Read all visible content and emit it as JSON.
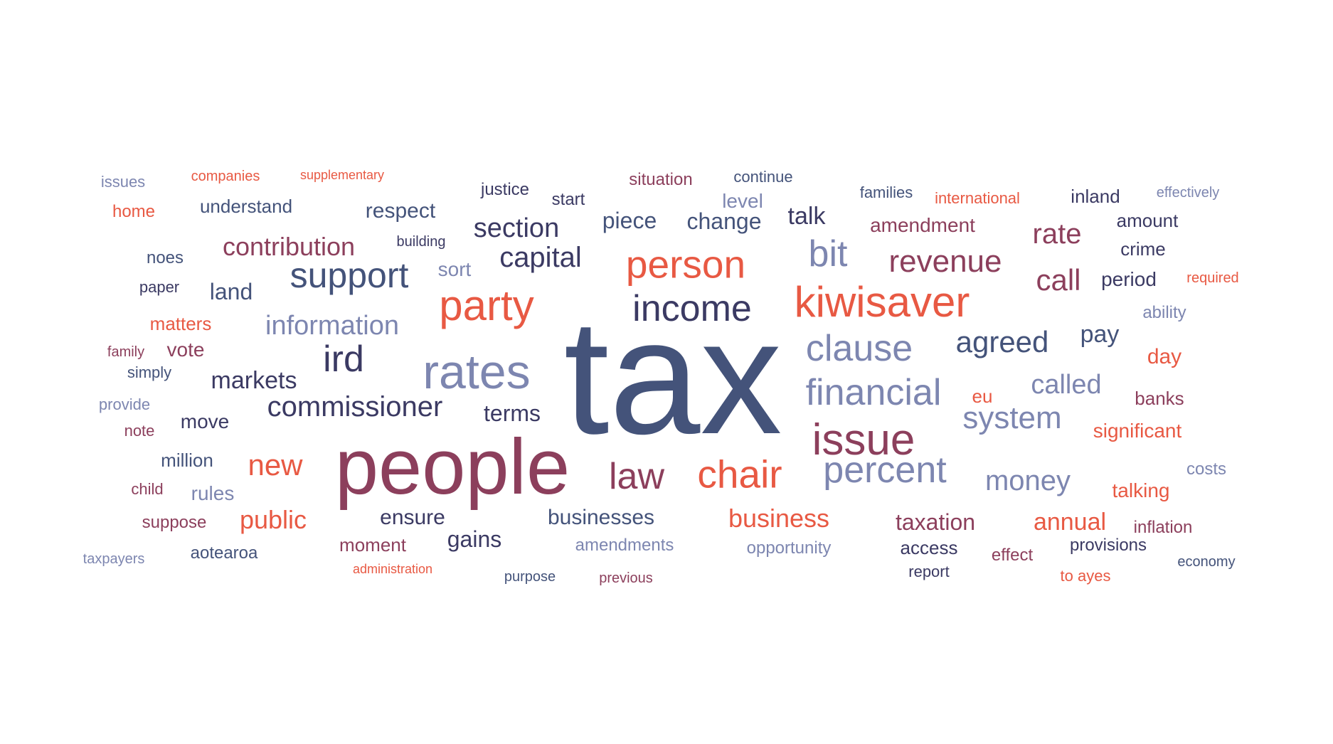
{
  "palette": {
    "navy": "#44537a",
    "indigo": "#3b3a63",
    "slate": "#7d86b0",
    "plum": "#8c3f5c",
    "coral": "#e85943"
  },
  "words": [
    {
      "text": "tax",
      "color": "navy"
    },
    {
      "text": "people",
      "color": "plum"
    },
    {
      "text": "rates",
      "color": "slate"
    },
    {
      "text": "kiwisaver",
      "color": "coral"
    },
    {
      "text": "party",
      "color": "coral"
    },
    {
      "text": "income",
      "color": "indigo"
    },
    {
      "text": "person",
      "color": "coral"
    },
    {
      "text": "issue",
      "color": "plum"
    },
    {
      "text": "chair",
      "color": "coral"
    },
    {
      "text": "financial",
      "color": "slate"
    },
    {
      "text": "clause",
      "color": "slate"
    },
    {
      "text": "percent",
      "color": "slate"
    },
    {
      "text": "support",
      "color": "navy"
    },
    {
      "text": "law",
      "color": "plum"
    },
    {
      "text": "bit",
      "color": "slate"
    },
    {
      "text": "ird",
      "color": "indigo"
    },
    {
      "text": "commissioner",
      "color": "indigo"
    },
    {
      "text": "system",
      "color": "slate"
    },
    {
      "text": "revenue",
      "color": "plum"
    },
    {
      "text": "agreed",
      "color": "navy"
    },
    {
      "text": "capital",
      "color": "indigo"
    },
    {
      "text": "call",
      "color": "plum"
    },
    {
      "text": "new",
      "color": "coral"
    },
    {
      "text": "section",
      "color": "indigo"
    },
    {
      "text": "money",
      "color": "slate"
    },
    {
      "text": "rate",
      "color": "plum"
    },
    {
      "text": "called",
      "color": "slate"
    },
    {
      "text": "contribution",
      "color": "plum"
    },
    {
      "text": "information",
      "color": "slate"
    },
    {
      "text": "business",
      "color": "coral"
    },
    {
      "text": "markets",
      "color": "indigo"
    },
    {
      "text": "public",
      "color": "coral"
    },
    {
      "text": "change",
      "color": "navy"
    },
    {
      "text": "piece",
      "color": "navy"
    },
    {
      "text": "talk",
      "color": "indigo"
    },
    {
      "text": "businesses",
      "color": "navy"
    },
    {
      "text": "taxation",
      "color": "plum"
    },
    {
      "text": "annual",
      "color": "coral"
    },
    {
      "text": "pay",
      "color": "navy"
    },
    {
      "text": "terms",
      "color": "indigo"
    },
    {
      "text": "respect",
      "color": "navy"
    },
    {
      "text": "gains",
      "color": "indigo"
    },
    {
      "text": "ensure",
      "color": "indigo"
    },
    {
      "text": "amendment",
      "color": "plum"
    },
    {
      "text": "significant",
      "color": "coral"
    },
    {
      "text": "day",
      "color": "coral"
    },
    {
      "text": "understand",
      "color": "navy"
    },
    {
      "text": "land",
      "color": "navy"
    },
    {
      "text": "talking",
      "color": "coral"
    },
    {
      "text": "moment",
      "color": "plum"
    },
    {
      "text": "move",
      "color": "indigo"
    },
    {
      "text": "access",
      "color": "indigo"
    },
    {
      "text": "amount",
      "color": "indigo"
    },
    {
      "text": "crime",
      "color": "indigo"
    },
    {
      "text": "period",
      "color": "indigo"
    },
    {
      "text": "rules",
      "color": "slate"
    },
    {
      "text": "million",
      "color": "navy"
    },
    {
      "text": "banks",
      "color": "plum"
    },
    {
      "text": "sort",
      "color": "slate"
    },
    {
      "text": "amendments",
      "color": "slate"
    },
    {
      "text": "opportunity",
      "color": "slate"
    },
    {
      "text": "level",
      "color": "slate"
    },
    {
      "text": "matters",
      "color": "coral"
    },
    {
      "text": "vote",
      "color": "plum"
    },
    {
      "text": "justice",
      "color": "indigo"
    },
    {
      "text": "provisions",
      "color": "indigo"
    },
    {
      "text": "situation",
      "color": "plum"
    },
    {
      "text": "inland",
      "color": "indigo"
    },
    {
      "text": "start",
      "color": "indigo"
    },
    {
      "text": "noes",
      "color": "navy"
    },
    {
      "text": "home",
      "color": "coral"
    },
    {
      "text": "inflation",
      "color": "plum"
    },
    {
      "text": "ability",
      "color": "slate"
    },
    {
      "text": "effect",
      "color": "plum"
    },
    {
      "text": "eu",
      "color": "coral"
    },
    {
      "text": "costs",
      "color": "slate"
    },
    {
      "text": "suppose",
      "color": "plum"
    },
    {
      "text": "issues",
      "color": "slate"
    },
    {
      "text": "aotearoa",
      "color": "navy"
    },
    {
      "text": "continue",
      "color": "navy"
    },
    {
      "text": "paper",
      "color": "indigo"
    },
    {
      "text": "simply",
      "color": "navy"
    },
    {
      "text": "child",
      "color": "plum"
    },
    {
      "text": "note",
      "color": "plum"
    },
    {
      "text": "families",
      "color": "navy"
    },
    {
      "text": "international",
      "color": "coral"
    },
    {
      "text": "economy",
      "color": "navy"
    },
    {
      "text": "family",
      "color": "plum"
    },
    {
      "text": "provide",
      "color": "slate"
    },
    {
      "text": "effectively",
      "color": "slate"
    },
    {
      "text": "required",
      "color": "coral"
    },
    {
      "text": "purpose",
      "color": "navy"
    },
    {
      "text": "previous",
      "color": "plum"
    },
    {
      "text": "to ayes",
      "color": "coral"
    },
    {
      "text": "report",
      "color": "indigo"
    },
    {
      "text": "taxpayers",
      "color": "slate"
    },
    {
      "text": "companies",
      "color": "coral"
    },
    {
      "text": "supplementary",
      "color": "coral"
    },
    {
      "text": "building",
      "color": "indigo"
    },
    {
      "text": "administration",
      "color": "coral"
    }
  ]
}
